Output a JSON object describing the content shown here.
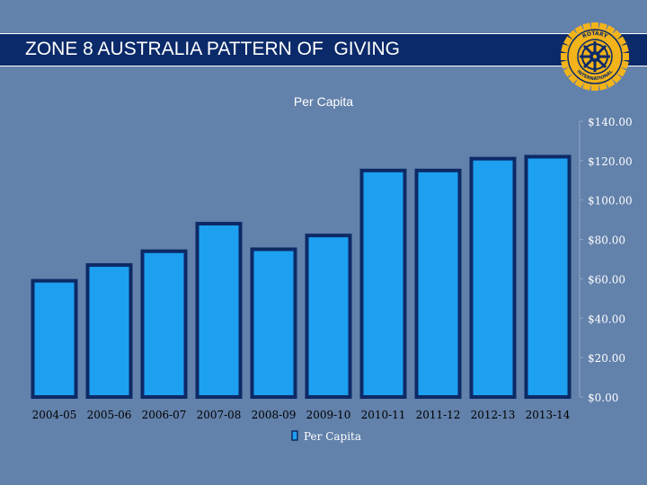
{
  "header": {
    "title": "ZONE 8 AUSTRALIA PATTERN OF  GIVING",
    "logo_text_top": "ROTARY",
    "logo_text_bottom": "INTERNATIONAL"
  },
  "colors": {
    "background": "#6281ab",
    "title_bar": "#0b2a6a",
    "bar_fill": "#1ea0f0",
    "bar_border": "#0d2a66",
    "logo_gold": "#f2b31b"
  },
  "chart_data": {
    "type": "bar",
    "title": "Per Capita",
    "categories": [
      "2004-05",
      "2005-06",
      "2006-07",
      "2007-08",
      "2008-09",
      "2009-10",
      "2010-11",
      "2011-12",
      "2012-13",
      "2013-14"
    ],
    "series": [
      {
        "name": "Per Capita",
        "values": [
          59,
          67,
          74,
          88,
          75,
          82,
          115,
          115,
          121,
          122
        ]
      }
    ],
    "ylim": [
      0,
      140
    ],
    "y_ticks": [
      0,
      20,
      40,
      60,
      80,
      100,
      120,
      140
    ],
    "y_tick_labels": [
      "$0.00",
      "$20.00",
      "$40.00",
      "$60.00",
      "$80.00",
      "$100.00",
      "$120.00",
      "$140.00"
    ],
    "y_axis_side": "right",
    "legend": "bottom",
    "xlabel": "",
    "ylabel": ""
  }
}
